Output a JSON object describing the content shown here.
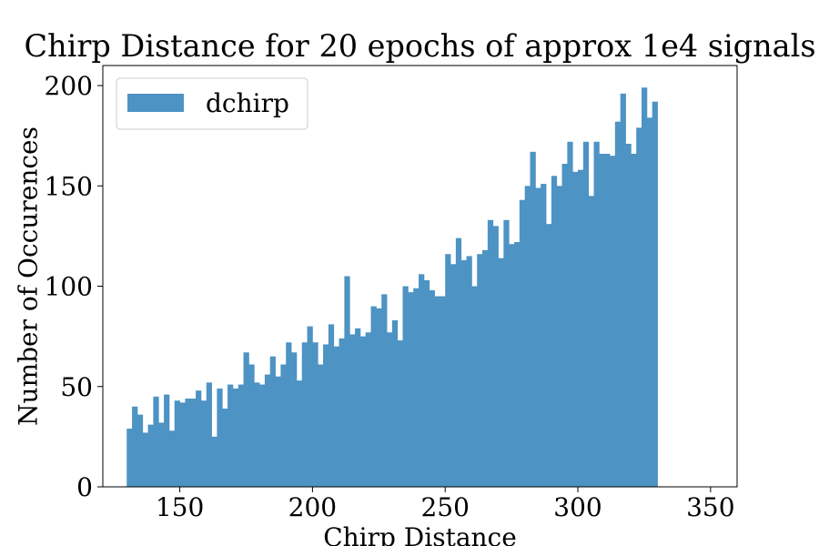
{
  "chart_data": {
    "type": "bar",
    "title": "Chirp Distance for 20 epochs of approx 1e4 signals",
    "xlabel": "Chirp Distance",
    "ylabel": "Number of Occurences",
    "xlim": [
      121,
      360
    ],
    "ylim": [
      0,
      210
    ],
    "xticks": [
      150,
      200,
      250,
      300,
      350
    ],
    "yticks": [
      0,
      50,
      100,
      150,
      200
    ],
    "legend": {
      "position": "top-left"
    },
    "grid": false,
    "series": [
      {
        "name": "dchirp",
        "color": "#4d93c4",
        "bin_start": 130,
        "bin_width": 2,
        "values": [
          29,
          40,
          36,
          27,
          31,
          45,
          32,
          46,
          28,
          43,
          42,
          44,
          44,
          48,
          43,
          52,
          25,
          49,
          39,
          51,
          49,
          51,
          67,
          61,
          52,
          51,
          56,
          65,
          55,
          61,
          72,
          67,
          53,
          72,
          80,
          72,
          61,
          71,
          81,
          70,
          74,
          105,
          76,
          79,
          75,
          77,
          90,
          89,
          96,
          77,
          83,
          73,
          100,
          97,
          99,
          106,
          103,
          98,
          95,
          95,
          116,
          111,
          124,
          113,
          115,
          100,
          116,
          118,
          133,
          130,
          114,
          133,
          121,
          122,
          143,
          150,
          167,
          149,
          151,
          131,
          155,
          150,
          161,
          172,
          157,
          158,
          172,
          145,
          172,
          166,
          166,
          165,
          182,
          196,
          171,
          166,
          179,
          199,
          184,
          192
        ]
      }
    ]
  }
}
